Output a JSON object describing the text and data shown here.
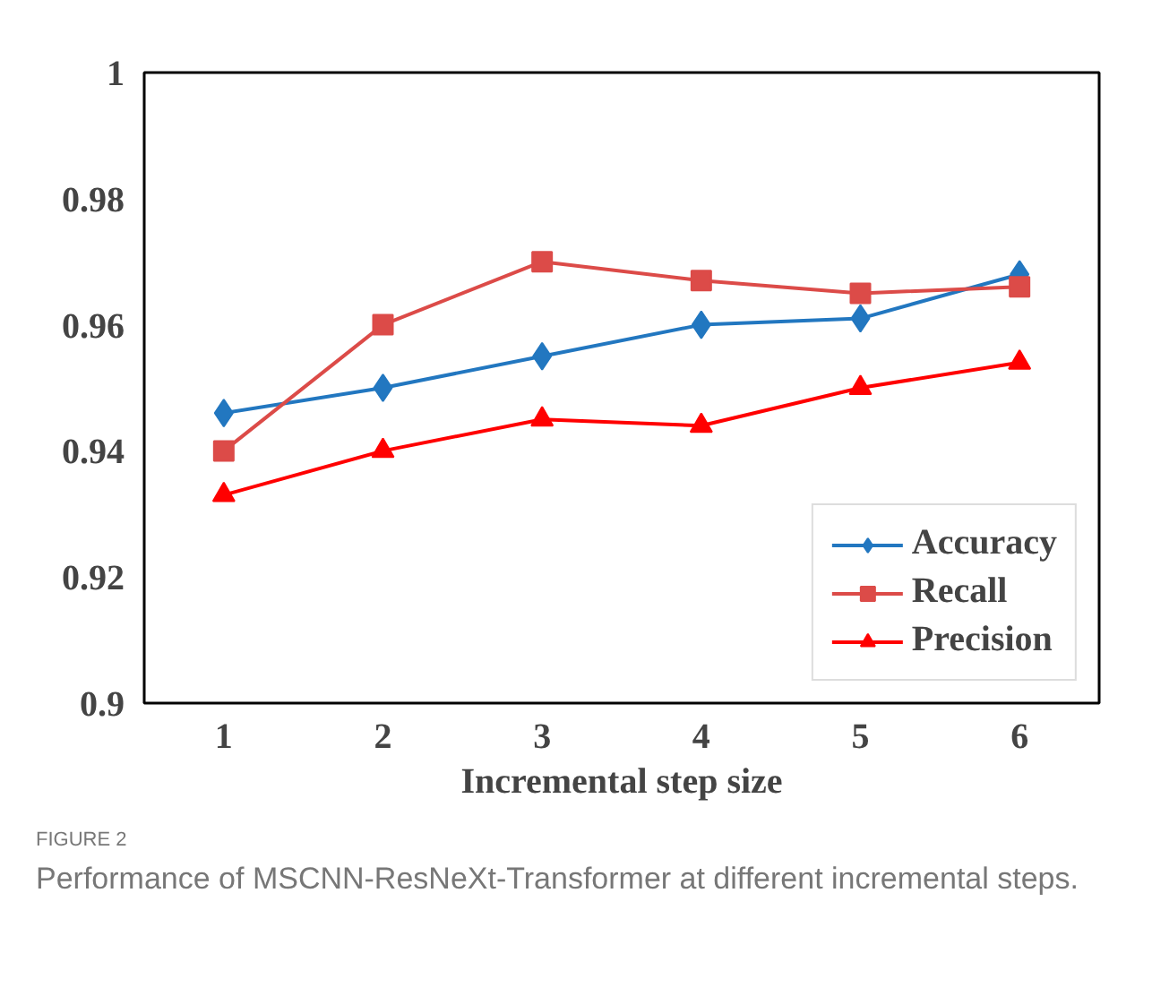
{
  "chart_data": {
    "type": "line",
    "xlabel": "Incremental step size",
    "categories": [
      "1",
      "2",
      "3",
      "4",
      "5",
      "6"
    ],
    "series": [
      {
        "name": "Accuracy",
        "color": "#2277c0",
        "marker": "diamond",
        "values": [
          0.946,
          0.95,
          0.955,
          0.96,
          0.961,
          0.968
        ]
      },
      {
        "name": "Recall",
        "color": "#dc4b48",
        "marker": "square",
        "values": [
          0.94,
          0.96,
          0.97,
          0.967,
          0.965,
          0.966
        ]
      },
      {
        "name": "Precision",
        "color": "#ff0000",
        "marker": "triangle",
        "values": [
          0.933,
          0.94,
          0.945,
          0.944,
          0.95,
          0.954
        ]
      }
    ],
    "ylim": [
      0.9,
      1
    ],
    "yticks": [
      0.9,
      0.92,
      0.94,
      0.96,
      0.98,
      1
    ],
    "grid": false,
    "legend": "bottom right",
    "line_style": "solid",
    "annotations": [
      "FIGURE 2",
      "Performance of MSCNN-ResNeXt-Transformer at different incremental steps."
    ]
  }
}
